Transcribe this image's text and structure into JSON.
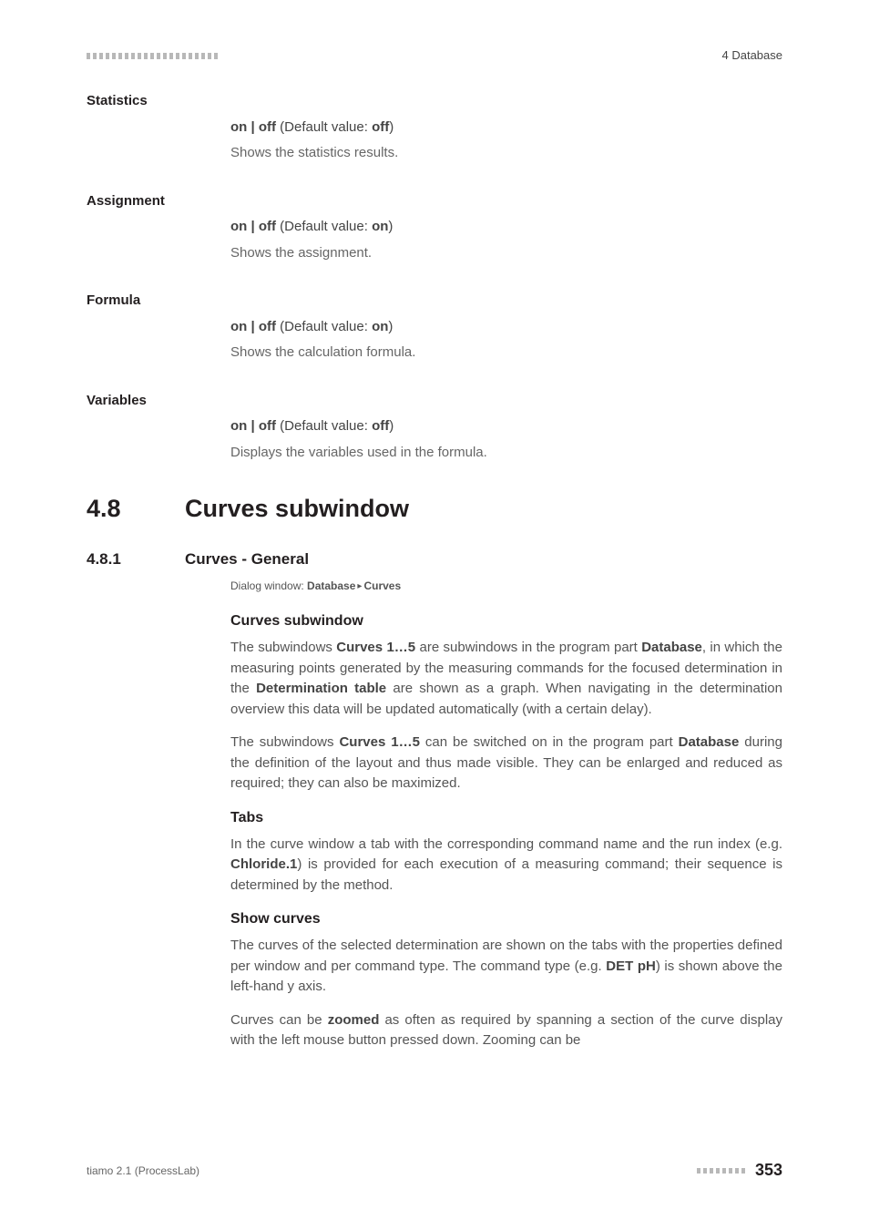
{
  "header": {
    "section_label": "4 Database"
  },
  "definitions": [
    {
      "term": "Statistics",
      "opts_pre": "on | off",
      "opts_mid": " (Default value: ",
      "default": "off",
      "opts_post": ")",
      "desc": "Shows the statistics results."
    },
    {
      "term": "Assignment",
      "opts_pre": "on | off",
      "opts_mid": " (Default value: ",
      "default": "on",
      "opts_post": ")",
      "desc": "Shows the assignment."
    },
    {
      "term": "Formula",
      "opts_pre": "on | off",
      "opts_mid": " (Default value: ",
      "default": "on",
      "opts_post": ")",
      "desc": "Shows the calculation formula."
    },
    {
      "term": "Variables",
      "opts_pre": "on | off",
      "opts_mid": " (Default value: ",
      "default": "off",
      "opts_post": ")",
      "desc": "Displays the variables used in the formula."
    }
  ],
  "h1": {
    "num": "4.8",
    "title": "Curves subwindow"
  },
  "h2": {
    "num": "4.8.1",
    "title": "Curves - General"
  },
  "dialog": {
    "label": "Dialog window: ",
    "path1": "Database",
    "path2": "Curves"
  },
  "sections": {
    "curves": {
      "heading": "Curves subwindow",
      "p1_a": "The subwindows ",
      "p1_b": "Curves 1…5",
      "p1_c": " are subwindows in the program part ",
      "p1_d": "Data­base",
      "p1_e": ", in which the measuring points generated by the measuring com­mands for the focused determination in the ",
      "p1_f": "Determination table",
      "p1_g": " are shown as a graph. When navigating in the determination overview this data will be updated automatically (with a certain delay).",
      "p2_a": "The subwindows ",
      "p2_b": "Curves 1…5",
      "p2_c": " can be switched on in the program part ",
      "p2_d": "Database",
      "p2_e": " during the definition of the layout and thus made visible. They can be enlarged and reduced as required; they can also be maximized."
    },
    "tabs": {
      "heading": "Tabs",
      "p_a": "In the curve window a tab with the corresponding command name and the run index (e.g. ",
      "p_b": "Chloride.1",
      "p_c": ") is provided for each execution of a measuring command; their sequence is determined by the method."
    },
    "show": {
      "heading": "Show curves",
      "p1_a": "The curves of the selected determination are shown on the tabs with the properties defined per window and per command type. The command type (e.g. ",
      "p1_b": "DET pH",
      "p1_c": ") is shown above the left-hand y axis.",
      "p2_a": "Curves can be ",
      "p2_b": "zoomed",
      "p2_c": " as often as required by spanning a section of the curve display with the left mouse button pressed down. Zooming can be"
    }
  },
  "footer": {
    "left": "tiamo 2.1 (ProcessLab)",
    "page": "353"
  }
}
